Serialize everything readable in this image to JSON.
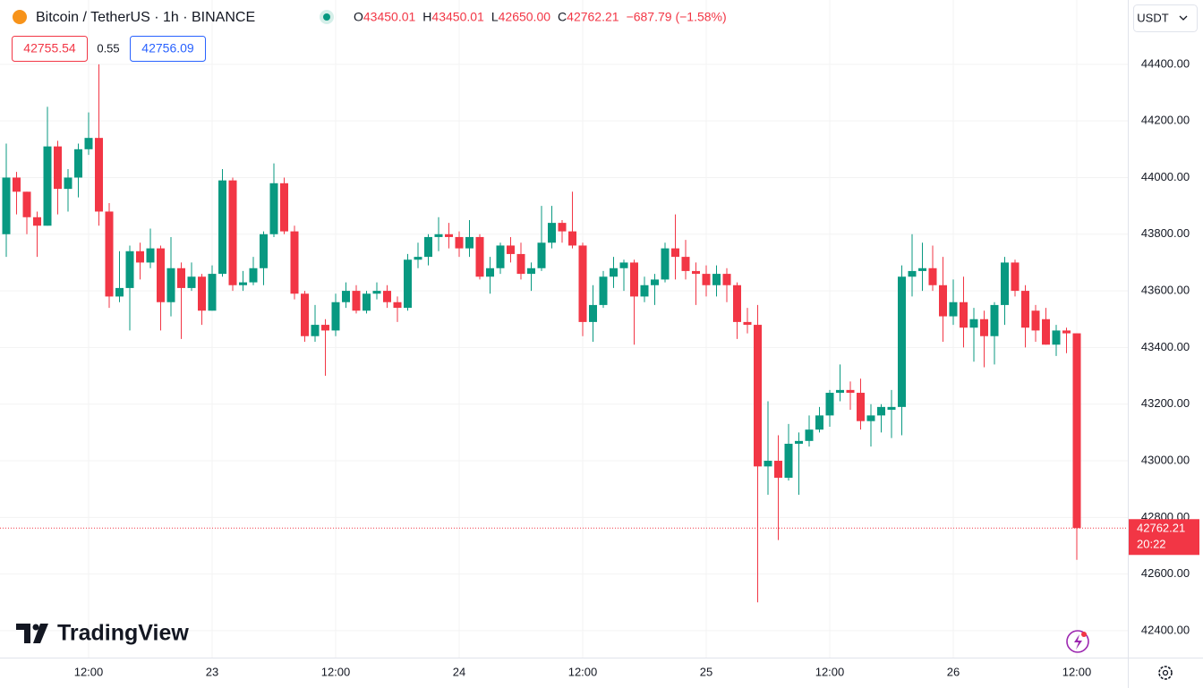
{
  "header": {
    "symbol": "Bitcoin / TetherUS · 1h · BINANCE",
    "ohlc": [
      {
        "key": "O",
        "value": "43450.01"
      },
      {
        "key": "H",
        "value": "43450.01"
      },
      {
        "key": "L",
        "value": "42650.00"
      },
      {
        "key": "C",
        "value": "42762.21"
      }
    ],
    "change": "−687.79 (−1.58%)",
    "bid": "42755.54",
    "spread": "0.55",
    "ask": "42756.09",
    "currency": "USDT"
  },
  "logo": "TradingView",
  "countdown": "20:22",
  "chart_data": {
    "type": "candlestick",
    "up_color": "#089981",
    "down_color": "#f23645",
    "grid": true,
    "categories": [
      null,
      null,
      null,
      null,
      null,
      null,
      null,
      null,
      "12:00",
      null,
      null,
      null,
      null,
      null,
      null,
      null,
      null,
      null,
      null,
      null,
      "23",
      null,
      null,
      null,
      null,
      null,
      null,
      null,
      null,
      null,
      null,
      null,
      "12:00",
      null,
      null,
      null,
      null,
      null,
      null,
      null,
      null,
      null,
      null,
      null,
      "24",
      null,
      null,
      null,
      null,
      null,
      null,
      null,
      null,
      null,
      null,
      null,
      "12:00",
      null,
      null,
      null,
      null,
      null,
      null,
      null,
      null,
      null,
      null,
      null,
      "25",
      null,
      null,
      null,
      null,
      null,
      null,
      null,
      null,
      null,
      null,
      null,
      "12:00",
      null,
      null,
      null,
      null,
      null,
      null,
      null,
      null,
      null,
      null,
      null,
      "26",
      null,
      null,
      null,
      null,
      null,
      null,
      null,
      null,
      null,
      null,
      null,
      "12:00"
    ],
    "open": [
      43800,
      44000,
      43950,
      43860,
      43830,
      44110,
      43960,
      44000,
      44100,
      44140,
      43880,
      43580,
      43610,
      43740,
      43700,
      43750,
      43560,
      43680,
      43610,
      43650,
      43530,
      43660,
      43990,
      43620,
      43630,
      43680,
      43800,
      43980,
      43810,
      43590,
      43440,
      43480,
      43460,
      43560,
      43600,
      43530,
      43590,
      43600,
      43560,
      43540,
      43710,
      43720,
      43790,
      43800,
      43790,
      43750,
      43790,
      43650,
      43680,
      43760,
      43730,
      43660,
      43680,
      43770,
      43840,
      43810,
      43760,
      43490,
      43550,
      43650,
      43680,
      43700,
      43580,
      43620,
      43640,
      43750,
      43720,
      43670,
      43660,
      43620,
      43660,
      43620,
      43490,
      43480,
      42980,
      43000,
      42940,
      43060,
      43070,
      43110,
      43160,
      43240,
      43250,
      43240,
      43140,
      43160,
      43180,
      43190,
      43650,
      43670,
      43680,
      43620,
      43510,
      43560,
      43470,
      43500,
      43440,
      43550,
      43700,
      43600,
      43530,
      43500,
      43410,
      43460,
      43450.01
    ],
    "high": [
      44120,
      44020,
      43950,
      43880,
      44250,
      44130,
      44030,
      44120,
      44230,
      44400,
      43910,
      43740,
      43760,
      43770,
      43820,
      43760,
      43790,
      43700,
      43700,
      43660,
      43690,
      44030,
      44000,
      43670,
      43720,
      43810,
      44050,
      44000,
      43830,
      43600,
      43550,
      43500,
      43590,
      43630,
      43620,
      43600,
      43630,
      43620,
      43580,
      43730,
      43770,
      43800,
      43860,
      43840,
      43810,
      43850,
      43800,
      43720,
      43770,
      43790,
      43770,
      43700,
      43900,
      43900,
      43850,
      43950,
      43770,
      43620,
      43670,
      43720,
      43710,
      43710,
      43650,
      43660,
      43770,
      43870,
      43780,
      43700,
      43690,
      43690,
      43680,
      43630,
      43540,
      43550,
      43210,
      43090,
      43130,
      43100,
      43160,
      43190,
      43250,
      43340,
      43280,
      43290,
      43200,
      43200,
      43250,
      43690,
      43800,
      43770,
      43760,
      43720,
      43640,
      43650,
      43540,
      43530,
      43560,
      43720,
      43710,
      43620,
      43550,
      43540,
      43480,
      43470,
      43450.01
    ],
    "low": [
      43720,
      43870,
      43800,
      43720,
      43830,
      43870,
      43880,
      43930,
      44080,
      43830,
      43540,
      43560,
      43460,
      43640,
      43680,
      43460,
      43510,
      43430,
      43600,
      43480,
      43530,
      43650,
      43600,
      43600,
      43620,
      43620,
      43790,
      43800,
      43570,
      43420,
      43420,
      43300,
      43440,
      43540,
      43520,
      43520,
      43570,
      43540,
      43490,
      43530,
      43680,
      43690,
      43740,
      43750,
      43720,
      43720,
      43640,
      43590,
      43660,
      43700,
      43640,
      43600,
      43670,
      43750,
      43770,
      43750,
      43440,
      43420,
      43540,
      43610,
      43600,
      43410,
      43560,
      43550,
      43630,
      43640,
      43640,
      43550,
      43580,
      43580,
      43560,
      43430,
      43450,
      42500,
      42880,
      42720,
      42930,
      42880,
      43050,
      43100,
      43120,
      43210,
      43180,
      43110,
      43050,
      43100,
      43080,
      43090,
      43580,
      43600,
      43600,
      43420,
      43480,
      43400,
      43350,
      43330,
      43340,
      43480,
      43580,
      43400,
      43420,
      43410,
      43370,
      43380,
      42650
    ],
    "close": [
      44000,
      43950,
      43860,
      43830,
      44110,
      43960,
      44000,
      44100,
      44140,
      43880,
      43580,
      43610,
      43740,
      43700,
      43750,
      43560,
      43680,
      43610,
      43650,
      43530,
      43660,
      43990,
      43620,
      43630,
      43680,
      43800,
      43980,
      43810,
      43590,
      43440,
      43480,
      43460,
      43560,
      43600,
      43530,
      43590,
      43600,
      43560,
      43540,
      43710,
      43720,
      43790,
      43800,
      43790,
      43750,
      43790,
      43650,
      43680,
      43760,
      43730,
      43660,
      43680,
      43770,
      43840,
      43810,
      43760,
      43490,
      43550,
      43650,
      43680,
      43700,
      43580,
      43620,
      43640,
      43750,
      43720,
      43670,
      43660,
      43620,
      43660,
      43620,
      43490,
      43480,
      42980,
      43000,
      42940,
      43060,
      43070,
      43110,
      43160,
      43240,
      43250,
      43240,
      43140,
      43160,
      43190,
      43190,
      43650,
      43670,
      43680,
      43620,
      43510,
      43560,
      43470,
      43500,
      43440,
      43550,
      43700,
      43600,
      43470,
      43460,
      43410,
      43460,
      43450,
      42762.21
    ],
    "ylim": [
      42305,
      44627
    ],
    "yticks": [
      {
        "value": 42400,
        "label": "42400.00"
      },
      {
        "value": 42600,
        "label": "42600.00"
      },
      {
        "value": 42800,
        "label": "42800.00"
      },
      {
        "value": 43000,
        "label": "43000.00"
      },
      {
        "value": 43200,
        "label": "43200.00"
      },
      {
        "value": 43400,
        "label": "43400.00"
      },
      {
        "value": 43600,
        "label": "43600.00"
      },
      {
        "value": 43800,
        "label": "43800.00"
      },
      {
        "value": 44000,
        "label": "44000.00"
      },
      {
        "value": 44200,
        "label": "44200.00"
      },
      {
        "value": 44400,
        "label": "44400.00"
      }
    ]
  }
}
